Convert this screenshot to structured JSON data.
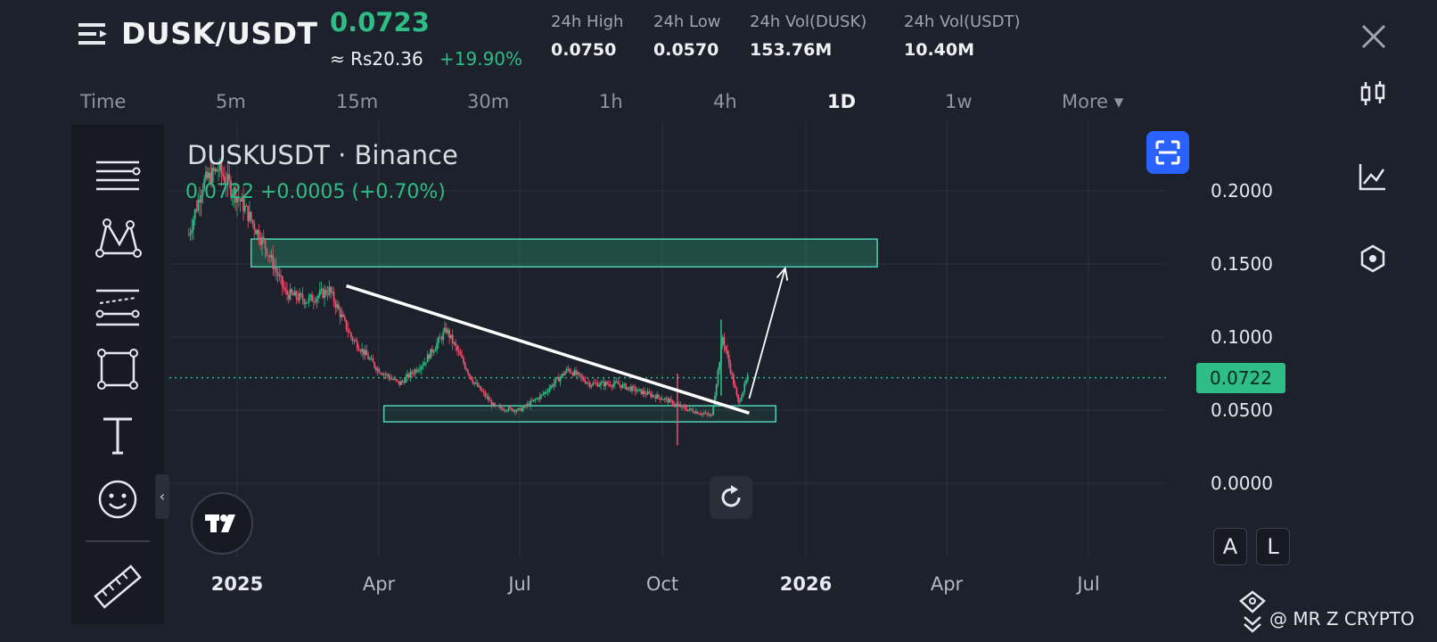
{
  "header": {
    "pair": "DUSK/USDT",
    "last_price": "0.0723",
    "fiat_price": "≈ Rs20.36",
    "change_pct": "+19.90%",
    "stats": [
      {
        "label": "24h High",
        "value": "0.0750"
      },
      {
        "label": "24h Low",
        "value": "0.0570"
      },
      {
        "label": "24h Vol(DUSK)",
        "value": "153.76M"
      },
      {
        "label": "24h Vol(USDT)",
        "value": "10.40M"
      }
    ]
  },
  "timeframes": {
    "items": [
      "Time",
      "5m",
      "15m",
      "30m",
      "1h",
      "4h",
      "1D",
      "1w",
      "More ▾"
    ],
    "active": "1D"
  },
  "icons": {
    "menu": "menu-icon",
    "close": "close-icon",
    "candlestick": "candlestick-icon",
    "indicator": "indicator-icon",
    "settings": "hexagon-settings-icon",
    "fullscreen": "fullscreen-icon",
    "reset": "reset-icon"
  },
  "chart_legend": {
    "symbol": "DUSKUSDT · Binance",
    "ohlc": "0.0722 +0.0005 (+0.70%)"
  },
  "scale_buttons": {
    "auto": "A",
    "log": "L"
  },
  "watermark": "@ MR Z CRYPTO",
  "colors": {
    "up": "#2ebd85",
    "down": "#f0506e",
    "accent": "#2962ff",
    "zone": "#4fd1b5"
  },
  "chart_data": {
    "type": "candlestick",
    "title": "DUSKUSDT · Binance",
    "x_ticks": [
      "2025",
      "Apr",
      "Jul",
      "Oct",
      "2026",
      "Apr",
      "Jul"
    ],
    "y_ticks": [
      "0.2000",
      "0.1500",
      "0.1000",
      "0.0500",
      "0.0000"
    ],
    "ylim": [
      0.0,
      0.2
    ],
    "current_price": 0.0722,
    "grid": true,
    "price_series": [
      {
        "t": "2024-12-01",
        "p": 0.17
      },
      {
        "t": "2024-12-10",
        "p": 0.205
      },
      {
        "t": "2024-12-20",
        "p": 0.215
      },
      {
        "t": "2025-01-05",
        "p": 0.19
      },
      {
        "t": "2025-01-20",
        "p": 0.16
      },
      {
        "t": "2025-02-01",
        "p": 0.13
      },
      {
        "t": "2025-02-15",
        "p": 0.125
      },
      {
        "t": "2025-03-01",
        "p": 0.132
      },
      {
        "t": "2025-03-15",
        "p": 0.1
      },
      {
        "t": "2025-04-01",
        "p": 0.078
      },
      {
        "t": "2025-04-15",
        "p": 0.068
      },
      {
        "t": "2025-05-01",
        "p": 0.083
      },
      {
        "t": "2025-05-15",
        "p": 0.105
      },
      {
        "t": "2025-06-01",
        "p": 0.07
      },
      {
        "t": "2025-06-15",
        "p": 0.052
      },
      {
        "t": "2025-07-01",
        "p": 0.05
      },
      {
        "t": "2025-07-15",
        "p": 0.06
      },
      {
        "t": "2025-08-01",
        "p": 0.078
      },
      {
        "t": "2025-08-15",
        "p": 0.068
      },
      {
        "t": "2025-09-01",
        "p": 0.068
      },
      {
        "t": "2025-09-15",
        "p": 0.063
      },
      {
        "t": "2025-10-01",
        "p": 0.058
      },
      {
        "t": "2025-10-15",
        "p": 0.051
      },
      {
        "t": "2025-11-01",
        "p": 0.046
      },
      {
        "t": "2025-11-08",
        "p": 0.1
      },
      {
        "t": "2025-11-18",
        "p": 0.055
      },
      {
        "t": "2025-11-24",
        "p": 0.0722
      }
    ],
    "annotations": {
      "resistance_zone": {
        "from": "2025-01-10",
        "to": "2026-02-15",
        "low": 0.148,
        "high": 0.167
      },
      "support_zone": {
        "from": "2025-04-05",
        "to": "2025-12-12",
        "low": 0.042,
        "high": 0.053
      },
      "trendline": {
        "from_t": "2025-03-12",
        "from_p": 0.135,
        "to_t": "2025-11-25",
        "to_p": 0.048
      },
      "target_arrow": {
        "from_t": "2025-11-25",
        "from_p": 0.058,
        "to_t": "2025-12-18",
        "to_p": 0.147
      }
    }
  }
}
